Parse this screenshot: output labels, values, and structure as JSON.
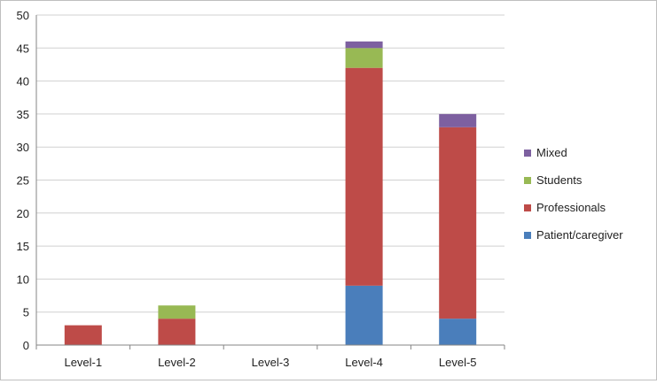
{
  "chart_data": {
    "type": "bar",
    "stacked": true,
    "categories": [
      "Level-1",
      "Level-2",
      "Level-3",
      "Level-4",
      "Level-5"
    ],
    "series": [
      {
        "name": "Patient/caregiver",
        "color": "#4a7ebb",
        "values": [
          0,
          0,
          0,
          9,
          4
        ]
      },
      {
        "name": "Professionals",
        "color": "#be4b48",
        "values": [
          3,
          4,
          0,
          33,
          29
        ]
      },
      {
        "name": "Students",
        "color": "#98b954",
        "values": [
          0,
          2,
          0,
          3,
          0
        ]
      },
      {
        "name": "Mixed",
        "color": "#7d60a0",
        "values": [
          0,
          0,
          0,
          1,
          2
        ]
      }
    ],
    "y_ticks": [
      "0",
      "5",
      "10",
      "15",
      "20",
      "25",
      "30",
      "35",
      "40",
      "45",
      "50"
    ],
    "ylim": [
      0,
      50
    ],
    "grid": true,
    "legend_position": "right"
  }
}
